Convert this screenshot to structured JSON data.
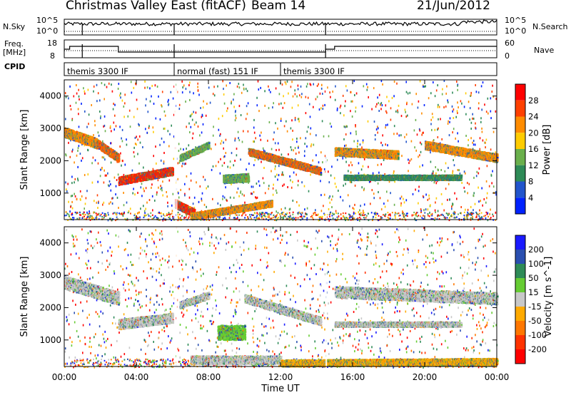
{
  "header": {
    "title": "Christmas Valley East (fitACF)",
    "beam": "Beam 14",
    "date": "21/Jun/2012"
  },
  "left_labels": {
    "nsky": "N.Sky",
    "freq": "Freq.",
    "mhz": "[MHz]",
    "cpid": "CPID"
  },
  "right_labels": {
    "nsearch": "N.Search",
    "nave": "Nave"
  },
  "noise_panel": {
    "left_ticks": [
      "10^5",
      "10^0"
    ],
    "right_ticks": [
      "10^5",
      "10^0"
    ]
  },
  "freq_panel": {
    "left_ticks": [
      "18",
      "8"
    ],
    "right_ticks": [
      "60",
      "0"
    ]
  },
  "cpid_panel": {
    "segments": [
      {
        "label": "themis 3300 IF",
        "start_hour": 0.0,
        "end_hour": 6.1
      },
      {
        "label": "normal (fast) 151 IF",
        "start_hour": 6.1,
        "end_hour": 12.0
      },
      {
        "label": "themis 3300 IF",
        "start_hour": 12.0,
        "end_hour": 24.0
      }
    ]
  },
  "chart_data": [
    {
      "type": "heatmap",
      "name": "power",
      "ylabel": "Slant Range [km]",
      "yticks": [
        1000,
        2000,
        3000,
        4000
      ],
      "ylim": [
        180,
        4500
      ],
      "xlim": [
        0,
        24
      ],
      "colorbar": {
        "label": "Power [dB]",
        "ticks": [
          "4",
          "8",
          "12",
          "16",
          "20",
          "24",
          "28"
        ],
        "colors": [
          "#0022ff",
          "#2255cc",
          "#2e8b57",
          "#6ab04c",
          "#ffcc00",
          "#ff8c00",
          "#ff4000",
          "#ff0000"
        ]
      },
      "bands": [
        {
          "x0": 0.0,
          "x1": 1.8,
          "y0": 2900,
          "y1": 2550,
          "w": 300,
          "c": "#ff8c00"
        },
        {
          "x0": 1.8,
          "x1": 3.0,
          "y0": 2550,
          "y1": 2100,
          "w": 250,
          "c": "#ff6000"
        },
        {
          "x0": 3.0,
          "x1": 6.0,
          "y0": 1400,
          "y1": 1700,
          "w": 250,
          "c": "#ff2000"
        },
        {
          "x0": 6.1,
          "x1": 7.2,
          "y0": 700,
          "y1": 400,
          "w": 250,
          "c": "#ff2000"
        },
        {
          "x0": 6.4,
          "x1": 8.0,
          "y0": 2100,
          "y1": 2500,
          "w": 200,
          "c": "#6ab04c"
        },
        {
          "x0": 8.8,
          "x1": 10.2,
          "y0": 1450,
          "y1": 1500,
          "w": 250,
          "c": "#6ab04c"
        },
        {
          "x0": 7.0,
          "x1": 11.5,
          "y0": 300,
          "y1": 700,
          "w": 200,
          "c": "#ff8c00"
        },
        {
          "x0": 10.2,
          "x1": 14.2,
          "y0": 2300,
          "y1": 1700,
          "w": 220,
          "c": "#ff6000"
        },
        {
          "x0": 15.0,
          "x1": 18.5,
          "y0": 2300,
          "y1": 2200,
          "w": 250,
          "c": "#ff8c00"
        },
        {
          "x0": 20.0,
          "x1": 24.0,
          "y0": 2500,
          "y1": 2100,
          "w": 250,
          "c": "#ff8c00"
        },
        {
          "x0": 15.5,
          "x1": 22.0,
          "y0": 1500,
          "y1": 1500,
          "w": 150,
          "c": "#2e8b57"
        }
      ]
    },
    {
      "type": "heatmap",
      "name": "velocity",
      "ylabel": "Slant Range [km]",
      "xlabel": "Time UT",
      "xticks": [
        "00:00",
        "04:00",
        "08:00",
        "12:00",
        "16:00",
        "20:00",
        "00:00"
      ],
      "yticks": [
        1000,
        2000,
        3000,
        4000
      ],
      "ylim": [
        180,
        4500
      ],
      "xlim": [
        0,
        24
      ],
      "colorbar": {
        "label": "Velocity [m s^-1]",
        "ticks": [
          "200",
          "100",
          "50",
          "15",
          "-15",
          "-50",
          "-100",
          "-200"
        ],
        "colors": [
          "#1a1aff",
          "#2a4fb0",
          "#2e8b57",
          "#66cc33",
          "#c8c8c8",
          "#ffaa00",
          "#ff7700",
          "#ff3300",
          "#ff0000"
        ]
      },
      "bands": [
        {
          "x0": 0.0,
          "x1": 3.0,
          "y0": 2800,
          "y1": 2300,
          "w": 400,
          "c": "#c8c8c8"
        },
        {
          "x0": 3.0,
          "x1": 6.0,
          "y0": 1500,
          "y1": 1700,
          "w": 300,
          "c": "#c8c8c8"
        },
        {
          "x0": 8.5,
          "x1": 10.0,
          "y0": 1250,
          "y1": 1250,
          "w": 450,
          "c": "#66cc33"
        },
        {
          "x0": 6.4,
          "x1": 8.0,
          "y0": 2100,
          "y1": 2400,
          "w": 200,
          "c": "#c8c8c8"
        },
        {
          "x0": 10.0,
          "x1": 14.2,
          "y0": 2300,
          "y1": 1600,
          "w": 250,
          "c": "#c8c8c8"
        },
        {
          "x0": 7.0,
          "x1": 12.0,
          "y0": 400,
          "y1": 400,
          "w": 250,
          "c": "#c8c8c8"
        },
        {
          "x0": 12.0,
          "x1": 24.0,
          "y0": 300,
          "y1": 350,
          "w": 200,
          "c": "#ffaa00"
        },
        {
          "x0": 15.0,
          "x1": 24.0,
          "y0": 2500,
          "y1": 2300,
          "w": 350,
          "c": "#c8c8c8"
        },
        {
          "x0": 15.0,
          "x1": 22.0,
          "y0": 1500,
          "y1": 1500,
          "w": 150,
          "c": "#c8c8c8"
        }
      ]
    }
  ]
}
